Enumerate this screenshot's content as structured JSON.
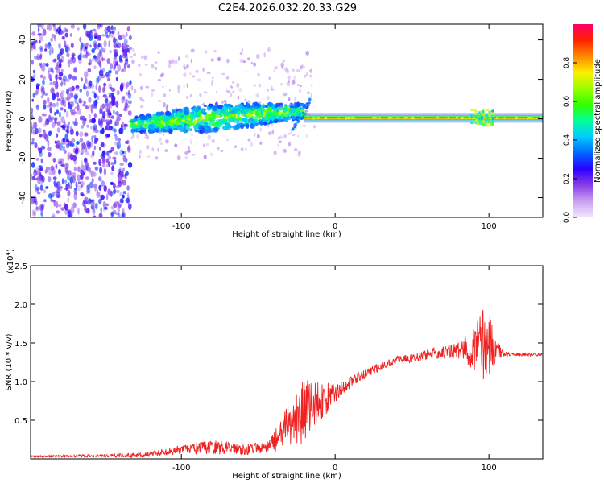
{
  "figure": {
    "title": "C2E4.2026.032.20.33.G29"
  },
  "chart_data": [
    {
      "type": "heatmap",
      "title": "C2E4.2026.032.20.33.G29",
      "xlabel": "Height of straight line (km)",
      "ylabel": "Frequency (Hz)",
      "xlim": [
        -198,
        135
      ],
      "ylim": [
        -50,
        48
      ],
      "xticks": [
        -100,
        0,
        100
      ],
      "yticks": [
        -40,
        -20,
        0,
        20,
        40
      ],
      "colorbar": {
        "label": "Normalized spectral amplitude",
        "range": [
          0,
          1
        ],
        "ticks": [
          0.0,
          0.2,
          0.4,
          0.6,
          0.8
        ],
        "tick_labels": [
          "0.0",
          "0.2",
          "0.4",
          "0.6",
          "0.8"
        ],
        "colors": [
          "#f3e6ff",
          "#c9a0f0",
          "#8a3ee8",
          "#2a00ff",
          "#0066ff",
          "#00ccff",
          "#00ff99",
          "#33ff00",
          "#99ff00",
          "#ffee00",
          "#ff8800",
          "#ff2200",
          "#ff0066"
        ]
      },
      "regions": [
        {
          "name": "noise",
          "x_range": [
            -198,
            -133
          ],
          "freq_range": [
            -50,
            48
          ],
          "amplitude": 0.15
        },
        {
          "name": "track_noisy",
          "x_range": [
            -133,
            -20
          ],
          "freq_start": -3,
          "freq_end": 4,
          "amplitude": 0.45
        },
        {
          "name": "track_stable",
          "x_range": [
            -20,
            135
          ],
          "freq": 0.5,
          "amplitude": 0.95
        }
      ]
    },
    {
      "type": "line",
      "title": "",
      "xlabel": "Height of straight line (km)",
      "ylabel": "SNR (10 * v/v)",
      "scale_label_prefix": "(x10",
      "scale_label_exp": "4",
      "scale_label_suffix": ")",
      "xlim": [
        -198,
        135
      ],
      "ylim": [
        0,
        2.5
      ],
      "xticks": [
        -100,
        0,
        100
      ],
      "yticks": [
        0.5,
        1.0,
        1.5,
        2.0,
        2.5
      ],
      "ytick_labels": [
        "0.5",
        "1.0",
        "1.5",
        "2.0",
        "2.5"
      ],
      "series": [
        {
          "name": "SNR",
          "color": "#ee2222",
          "x": [
            -198,
            -150,
            -125,
            -100,
            -80,
            -60,
            -45,
            -35,
            -28,
            -22,
            -15,
            -8,
            0,
            10,
            20,
            30,
            40,
            50,
            60,
            70,
            80,
            90,
            95,
            100,
            105,
            110,
            120,
            135
          ],
          "values": [
            0.03,
            0.04,
            0.05,
            0.12,
            0.15,
            0.13,
            0.14,
            0.3,
            0.5,
            0.6,
            0.7,
            0.75,
            0.85,
            1.0,
            1.1,
            1.2,
            1.28,
            1.3,
            1.35,
            1.38,
            1.4,
            1.45,
            1.5,
            1.5,
            1.4,
            1.36,
            1.35,
            1.35
          ],
          "noise": [
            0.01,
            0.02,
            0.03,
            0.06,
            0.09,
            0.08,
            0.06,
            0.2,
            0.35,
            0.45,
            0.35,
            0.25,
            0.12,
            0.08,
            0.06,
            0.05,
            0.05,
            0.06,
            0.07,
            0.08,
            0.12,
            0.3,
            0.5,
            0.45,
            0.15,
            0.03,
            0.02,
            0.02
          ]
        }
      ]
    }
  ]
}
